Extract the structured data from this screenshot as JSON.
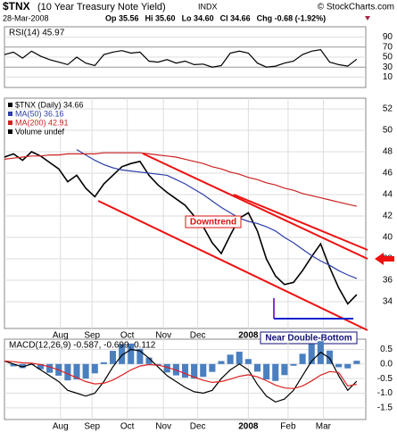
{
  "header": {
    "symbol": "$TNX",
    "title": "(10 Year Treasury Note Yield)",
    "exchange": "INDX",
    "credit": "© StockCharts.com",
    "date": "28-Mar-2008",
    "quote": [
      "Op 35.56",
      "Hi 35.60",
      "Lo 34.60",
      "Cl 34.66",
      "Chg -0.68 (-1.92%)"
    ]
  },
  "chart_data": [
    {
      "type": "line",
      "title": "RSI(14) 45.97",
      "x": [
        0,
        1,
        2,
        3,
        4,
        5,
        6,
        7,
        8,
        9,
        10,
        11,
        12,
        13,
        14,
        15,
        16,
        17,
        18,
        19,
        20,
        21,
        22,
        23,
        24,
        25,
        26,
        27,
        28,
        29,
        30,
        31,
        32,
        33,
        34,
        35,
        36,
        37,
        38,
        39
      ],
      "xlim": [
        0,
        40
      ],
      "ylim": [
        0,
        100
      ],
      "yticks": [
        10,
        30,
        50,
        70,
        90
      ],
      "series": [
        {
          "name": "RSI(14)",
          "color": "#000000",
          "values": [
            55,
            60,
            48,
            62,
            52,
            45,
            40,
            35,
            50,
            38,
            33,
            55,
            60,
            63,
            58,
            60,
            42,
            40,
            45,
            38,
            42,
            35,
            36,
            30,
            33,
            58,
            62,
            58,
            38,
            30,
            32,
            38,
            42,
            55,
            62,
            65,
            40,
            35,
            32,
            45.97
          ]
        }
      ]
    },
    {
      "type": "line",
      "x": [
        0,
        1,
        2,
        3,
        4,
        5,
        6,
        7,
        8,
        9,
        10,
        11,
        12,
        13,
        14,
        15,
        16,
        17,
        18,
        19,
        20,
        21,
        22,
        23,
        24,
        25,
        26,
        27,
        28,
        29,
        30,
        31,
        32,
        33,
        34,
        35,
        36,
        37,
        38,
        39
      ],
      "xlim": [
        0,
        40
      ],
      "ylim": [
        31.5,
        53
      ],
      "yticks": [
        34,
        36,
        38,
        40,
        42,
        44,
        46,
        48,
        50,
        52
      ],
      "xticks": [
        {
          "value": 6.2,
          "label": "Aug"
        },
        {
          "value": 9.7,
          "label": "Sep"
        },
        {
          "value": 13.6,
          "label": "Oct"
        },
        {
          "value": 17.6,
          "label": "Nov"
        },
        {
          "value": 21.4,
          "label": "Dec"
        },
        {
          "value": 27,
          "label": "2008"
        },
        {
          "value": 31.4,
          "label": "Feb"
        },
        {
          "value": 35.3,
          "label": "Mar"
        }
      ],
      "legend": [
        "$TNX (Daily) 34.66",
        "MA(50) 36.16",
        "MA(200) 42.91",
        "Volume undef"
      ],
      "annotations": [
        "Downtrend",
        "Near Double-Bottom"
      ],
      "series": [
        {
          "name": "$TNX (Daily)",
          "color": "#000000",
          "values": [
            47.5,
            47.8,
            47.2,
            48.0,
            47.6,
            47.0,
            46.4,
            45.2,
            45.8,
            44.6,
            43.8,
            45.0,
            45.8,
            46.6,
            46.9,
            47.1,
            45.8,
            44.9,
            44.2,
            43.6,
            43.0,
            42.0,
            41.0,
            39.5,
            38.5,
            40.2,
            41.8,
            42.3,
            40.6,
            38.0,
            36.4,
            35.6,
            35.8,
            36.9,
            38.2,
            39.4,
            37.2,
            35.3,
            33.8,
            34.66
          ]
        },
        {
          "name": "MA(50)",
          "color": "#2b3ea8",
          "values": [
            null,
            null,
            null,
            null,
            null,
            null,
            null,
            null,
            48.2,
            47.7,
            47.2,
            46.8,
            46.5,
            46.3,
            46.2,
            46.1,
            46.0,
            45.9,
            45.8,
            45.4,
            45.0,
            44.5,
            44.0,
            43.4,
            42.8,
            42.3,
            41.8,
            41.5,
            41.3,
            41.0,
            40.6,
            40.0,
            39.5,
            38.9,
            38.3,
            37.8,
            37.4,
            36.9,
            36.5,
            36.16
          ]
        },
        {
          "name": "MA(200)",
          "color": "#cc2222",
          "values": [
            47.3,
            47.4,
            47.5,
            47.6,
            47.6,
            47.7,
            47.7,
            47.8,
            47.8,
            47.8,
            47.8,
            47.9,
            47.9,
            47.9,
            47.9,
            47.9,
            47.8,
            47.7,
            47.6,
            47.5,
            47.3,
            47.1,
            46.9,
            46.6,
            46.4,
            46.1,
            45.9,
            45.6,
            45.4,
            45.1,
            44.9,
            44.6,
            44.4,
            44.1,
            43.9,
            43.7,
            43.5,
            43.3,
            43.1,
            42.91
          ]
        }
      ]
    },
    {
      "type": "line",
      "title": "MACD(12,26,9) -0.587, -0.699, 0.112",
      "x": [
        0,
        1,
        2,
        3,
        4,
        5,
        6,
        7,
        8,
        9,
        10,
        11,
        12,
        13,
        14,
        15,
        16,
        17,
        18,
        19,
        20,
        21,
        22,
        23,
        24,
        25,
        26,
        27,
        28,
        29,
        30,
        31,
        32,
        33,
        34,
        35,
        36,
        37,
        38,
        39
      ],
      "xlim": [
        0,
        40
      ],
      "ylim": [
        -1.9,
        0.85
      ],
      "yticks": [
        0.5,
        {
          "value": 0,
          "label": "0.0"
        },
        -0.5,
        {
          "value": -1,
          "label": "-1.0"
        },
        -1.5
      ],
      "xticks": [
        {
          "value": 6.2,
          "label": "Aug"
        },
        {
          "value": 9.7,
          "label": "Sep"
        },
        {
          "value": 13.6,
          "label": "Oct"
        },
        {
          "value": 17.6,
          "label": "Nov"
        },
        {
          "value": 21.4,
          "label": "Dec"
        },
        {
          "value": 27,
          "label": "2008"
        },
        {
          "value": 31.4,
          "label": "Feb"
        },
        {
          "value": 35.3,
          "label": "Mar"
        }
      ],
      "series": [
        {
          "name": "Histogram",
          "kind": "bar",
          "color": "#4a7fc0",
          "values": [
            0,
            -0.08,
            -0.14,
            -0.03,
            -0.18,
            -0.3,
            -0.4,
            -0.56,
            -0.53,
            -0.5,
            -0.32,
            0.06,
            0.45,
            0.68,
            0.7,
            0.52,
            0.22,
            -0.06,
            -0.29,
            -0.39,
            -0.47,
            -0.5,
            -0.44,
            -0.27,
            0.1,
            0.32,
            0.42,
            0.17,
            -0.26,
            -0.53,
            -0.58,
            -0.38,
            -0.06,
            0.35,
            0.68,
            0.78,
            0.46,
            -0.11,
            -0.15,
            0.112
          ]
        },
        {
          "name": "MACD",
          "kind": "line",
          "color": "#000000",
          "values": [
            0.1,
            0.0,
            -0.1,
            0.0,
            -0.2,
            -0.4,
            -0.6,
            -0.9,
            -1.0,
            -1.1,
            -1.0,
            -0.6,
            -0.1,
            0.3,
            0.5,
            0.45,
            0.2,
            -0.1,
            -0.4,
            -0.6,
            -0.8,
            -0.95,
            -1.0,
            -0.9,
            -0.5,
            -0.2,
            0.0,
            -0.2,
            -0.7,
            -1.1,
            -1.3,
            -1.2,
            -0.9,
            -0.4,
            0.1,
            0.4,
            0.2,
            -0.4,
            -0.9,
            -0.587
          ]
        },
        {
          "name": "Signal",
          "kind": "line",
          "color": "#dd2222",
          "values": [
            0.1,
            0.08,
            0.04,
            0.03,
            -0.02,
            -0.1,
            -0.2,
            -0.34,
            -0.47,
            -0.6,
            -0.68,
            -0.66,
            -0.55,
            -0.38,
            -0.2,
            -0.07,
            -0.02,
            -0.04,
            -0.11,
            -0.21,
            -0.33,
            -0.45,
            -0.56,
            -0.63,
            -0.6,
            -0.52,
            -0.42,
            -0.37,
            -0.44,
            -0.57,
            -0.72,
            -0.82,
            -0.84,
            -0.75,
            -0.58,
            -0.38,
            -0.26,
            -0.29,
            -0.75,
            -0.699
          ]
        }
      ]
    }
  ]
}
